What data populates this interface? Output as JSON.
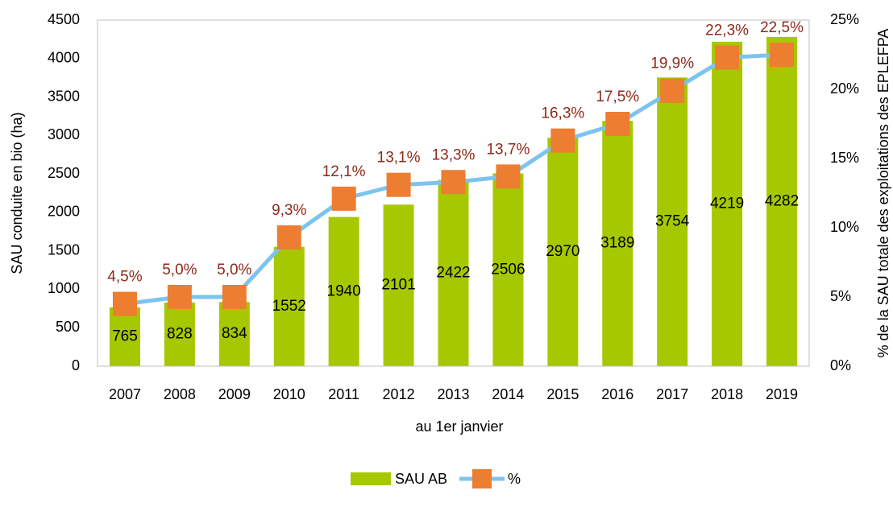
{
  "chart_data": {
    "type": "bar_line",
    "x_label": "au 1er janvier",
    "y_label": "SAU conduite en bio (ha)",
    "y2_label": "% de la SAU totale des exploitations des EPLEFPA",
    "categories": [
      "2007",
      "2008",
      "2009",
      "2010",
      "2011",
      "2012",
      "2013",
      "2014",
      "2015",
      "2016",
      "2017",
      "2018",
      "2019"
    ],
    "series": [
      {
        "name": "SAU AB",
        "color": "#a5c800",
        "type": "bar",
        "values": [
          765,
          828,
          834,
          1552,
          1940,
          2101,
          2422,
          2506,
          2970,
          3189,
          3754,
          4219,
          4282
        ]
      },
      {
        "name": "%",
        "color": "#7dc3ef",
        "marker_color": "#ed7d31",
        "label_color": "#8b2a1a",
        "type": "line",
        "axis": "y2",
        "values": [
          4.5,
          5.0,
          5.0,
          9.3,
          12.1,
          13.1,
          13.3,
          13.7,
          16.3,
          17.5,
          19.9,
          22.3,
          22.5
        ],
        "value_labels": [
          "4,5%",
          "5,0%",
          "5,0%",
          "9,3%",
          "12,1%",
          "13,1%",
          "13,3%",
          "13,7%",
          "16,3%",
          "17,5%",
          "19,9%",
          "22,3%",
          "22,5%"
        ]
      }
    ],
    "ylim": [
      0,
      4500
    ],
    "yticks": [
      0,
      500,
      1000,
      1500,
      2000,
      2500,
      3000,
      3500,
      4000,
      4500
    ],
    "y2lim": [
      0,
      25
    ],
    "y2ticks": [
      {
        "value": 0,
        "label": "0%"
      },
      {
        "value": 5,
        "label": "5%"
      },
      {
        "value": 10,
        "label": "10%"
      },
      {
        "value": 15,
        "label": "15%"
      },
      {
        "value": 20,
        "label": "20%"
      },
      {
        "value": 25,
        "label": "25%"
      }
    ],
    "grid": false,
    "legend": "bottom"
  }
}
